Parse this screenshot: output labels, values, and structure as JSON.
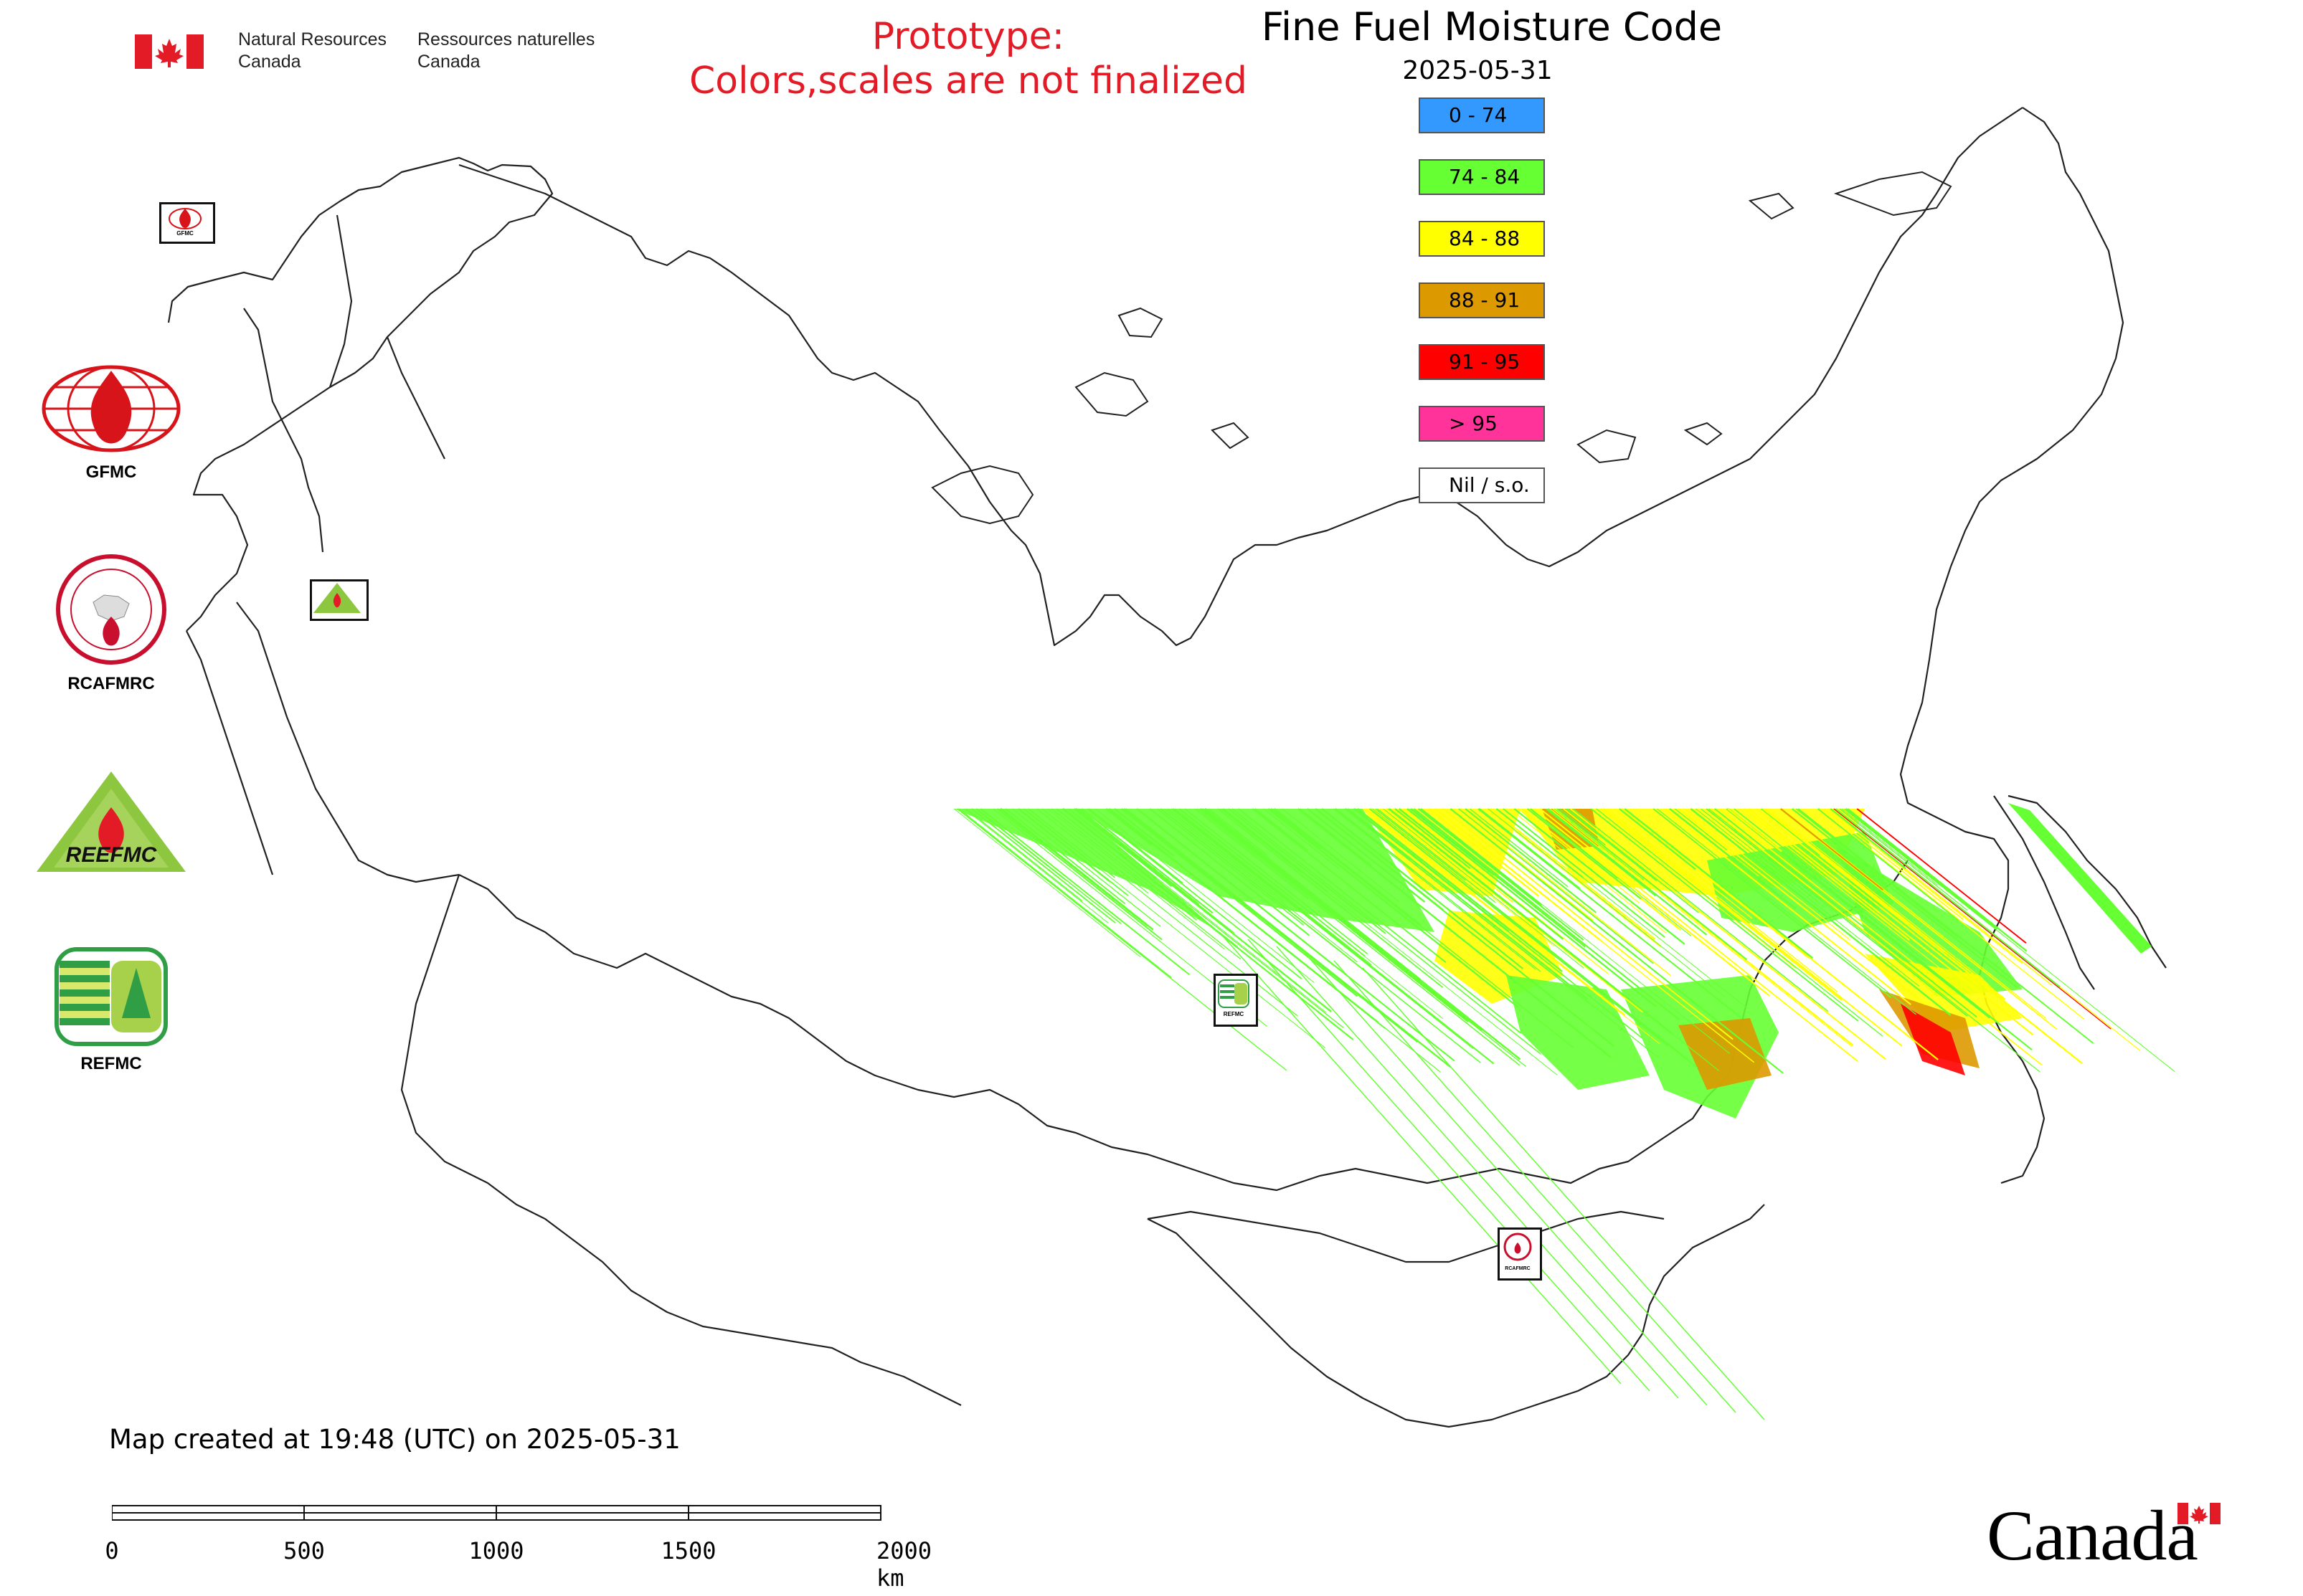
{
  "header": {
    "agency_en_line1": "Natural Resources",
    "agency_en_line2": "Canada",
    "agency_fr_line1": "Ressources naturelles",
    "agency_fr_line2": "Canada",
    "prototype_line1": "Prototype:",
    "prototype_line2": "Colors,scales are not finalized",
    "title": "Fine Fuel Moisture Code",
    "date": "2025-05-31"
  },
  "legend": {
    "items": [
      {
        "label": "0 - 74",
        "color": "#3399ff"
      },
      {
        "label": "74 - 84",
        "color": "#66ff33"
      },
      {
        "label": "84 - 88",
        "color": "#ffff00"
      },
      {
        "label": "88 - 91",
        "color": "#dd9900"
      },
      {
        "label": "91 - 95",
        "color": "#ff0000"
      },
      {
        "label": "> 95",
        "color": "#ff3399"
      },
      {
        "label": "Nil / s.o.",
        "color": "#ffffff"
      }
    ]
  },
  "logos": [
    {
      "label": "GFMC",
      "map_label": "GFMC"
    },
    {
      "label": "RCAFMRC",
      "map_label": "RCAFMRC"
    },
    {
      "label": "REEFMC",
      "map_label": "REEFMC"
    },
    {
      "label": "REFMC",
      "map_label": "REFMC"
    }
  ],
  "footer": {
    "created": "Map created at 19:48 (UTC) on 2025-05-31",
    "scale_labels": [
      "0",
      "500",
      "1000",
      "1500",
      "2000 km"
    ],
    "wordmark": "Canada"
  },
  "colors": {
    "prototype_text": "#e21b26",
    "flag_red": "#e21b26",
    "border": "#000000"
  }
}
